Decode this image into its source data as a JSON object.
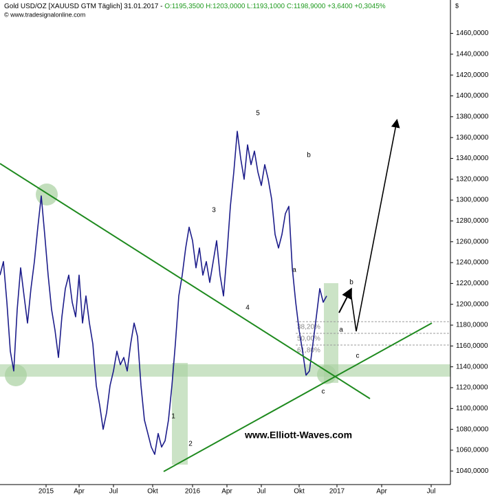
{
  "chart_data": {
    "type": "line",
    "title": "Gold USD/OZ [XAUUSD GTM  Täglich] 31.01.2017 -",
    "ohlc_text": "O:1195,3500 H:1203,0000 L:1193,1000",
    "change_text": "C:1198,9000 +3,6400 +0,3045%",
    "source": "© www.tradesignalonline.com",
    "currency": "$",
    "watermark": "www.Elliott-Waves.com",
    "series": [
      {
        "name": "Gold USD/OZ",
        "color": "#1c1c8a",
        "values": [
          1228,
          1241,
          1202,
          1155,
          1136,
          1195,
          1235,
          1208,
          1182,
          1215,
          1241,
          1274,
          1304,
          1267,
          1228,
          1195,
          1175,
          1149,
          1188,
          1215,
          1228,
          1202,
          1188,
          1228,
          1182,
          1208,
          1182,
          1162,
          1122,
          1103,
          1080,
          1096,
          1122,
          1136,
          1155,
          1142,
          1149,
          1136,
          1162,
          1182,
          1169,
          1122,
          1089,
          1076,
          1063,
          1056,
          1076,
          1063,
          1069,
          1089,
          1122,
          1162,
          1208,
          1228,
          1254,
          1274,
          1261,
          1235,
          1254,
          1228,
          1241,
          1221,
          1241,
          1261,
          1228,
          1208,
          1248,
          1294,
          1327,
          1366,
          1340,
          1320,
          1353,
          1334,
          1347,
          1327,
          1314,
          1334,
          1320,
          1301,
          1267,
          1254,
          1267,
          1287,
          1294,
          1235,
          1202,
          1175,
          1155,
          1132,
          1136,
          1162,
          1188,
          1215,
          1202,
          1208
        ]
      }
    ],
    "xlim": [
      0,
      131
    ],
    "ylim": [
      1027,
      1492
    ],
    "xticks": [
      {
        "value": 13.4,
        "label": "2015"
      },
      {
        "value": 23,
        "label": "Apr"
      },
      {
        "value": 33,
        "label": "Jul"
      },
      {
        "value": 44.4,
        "label": "Okt"
      },
      {
        "value": 56,
        "label": "2016"
      },
      {
        "value": 66,
        "label": "Apr"
      },
      {
        "value": 76,
        "label": "Jul"
      },
      {
        "value": 87,
        "label": "Okt"
      },
      {
        "value": 98,
        "label": "2017"
      },
      {
        "value": 111,
        "label": "Apr"
      },
      {
        "value": 125.4,
        "label": "Jul"
      }
    ],
    "yticks": [
      {
        "value": 1040,
        "label": "1040,0000"
      },
      {
        "value": 1060,
        "label": "1060,0000"
      },
      {
        "value": 1080,
        "label": "1080,0000"
      },
      {
        "value": 1100,
        "label": "1100,0000"
      },
      {
        "value": 1120,
        "label": "1120,0000"
      },
      {
        "value": 1140,
        "label": "1140,0000"
      },
      {
        "value": 1160,
        "label": "1160,0000"
      },
      {
        "value": 1180,
        "label": "1180,0000"
      },
      {
        "value": 1200,
        "label": "1200,0000"
      },
      {
        "value": 1220,
        "label": "1220,0000"
      },
      {
        "value": 1240,
        "label": "1240,0000"
      },
      {
        "value": 1260,
        "label": "1260,0000"
      },
      {
        "value": 1280,
        "label": "1280,0000"
      },
      {
        "value": 1300,
        "label": "1300,0000"
      },
      {
        "value": 1320,
        "label": "1320,0000"
      },
      {
        "value": 1340,
        "label": "1340,0000"
      },
      {
        "value": 1360,
        "label": "1360,0000"
      },
      {
        "value": 1380,
        "label": "1380,0000"
      },
      {
        "value": 1400,
        "label": "1400,0000"
      },
      {
        "value": 1420,
        "label": "1420,0000"
      },
      {
        "value": 1440,
        "label": "1440,0000"
      },
      {
        "value": 1460,
        "label": "1460,0000"
      }
    ],
    "wave_labels": [
      "5",
      "3",
      "4",
      "b",
      "a",
      "c",
      "1",
      "2",
      "b",
      "a",
      "c"
    ],
    "fib_labels": [
      "38,20%",
      "50,00%",
      "61,80%"
    ]
  }
}
